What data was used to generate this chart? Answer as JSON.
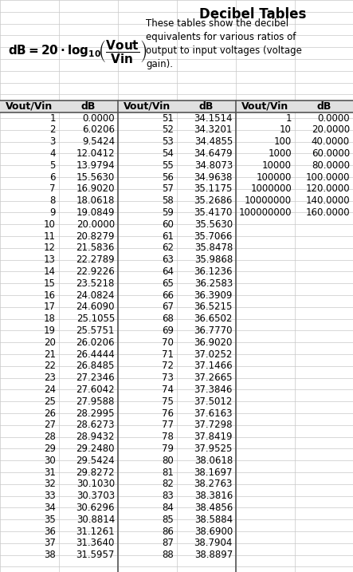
{
  "title": "Decibel Tables",
  "description": "These tables show the decibel\nequivalents for various ratios of\noutput to input voltages (voltage\ngain).",
  "col1_vout": [
    1,
    2,
    3,
    4,
    5,
    6,
    7,
    8,
    9,
    10,
    11,
    12,
    13,
    14,
    15,
    16,
    17,
    18,
    19,
    20,
    21,
    22,
    23,
    24,
    25,
    26,
    27,
    28,
    29,
    30,
    31,
    32,
    33,
    34,
    35,
    36,
    37,
    38
  ],
  "col1_db": [
    "0.0000",
    "6.0206",
    "9.5424",
    "12.0412",
    "13.9794",
    "15.5630",
    "16.9020",
    "18.0618",
    "19.0849",
    "20.0000",
    "20.8279",
    "21.5836",
    "22.2789",
    "22.9226",
    "23.5218",
    "24.0824",
    "24.6090",
    "25.1055",
    "25.5751",
    "26.0206",
    "26.4444",
    "26.8485",
    "27.2346",
    "27.6042",
    "27.9588",
    "28.2995",
    "28.6273",
    "28.9432",
    "29.2480",
    "29.5424",
    "29.8272",
    "30.1030",
    "30.3703",
    "30.6296",
    "30.8814",
    "31.1261",
    "31.3640",
    "31.5957"
  ],
  "col2_vout": [
    51,
    52,
    53,
    54,
    55,
    56,
    57,
    58,
    59,
    60,
    61,
    62,
    63,
    64,
    65,
    66,
    67,
    68,
    69,
    70,
    71,
    72,
    73,
    74,
    75,
    76,
    77,
    78,
    79,
    80,
    81,
    82,
    83,
    84,
    85,
    86,
    87,
    88
  ],
  "col2_db": [
    "34.1514",
    "34.3201",
    "34.4855",
    "34.6479",
    "34.8073",
    "34.9638",
    "35.1175",
    "35.2686",
    "35.4170",
    "35.5630",
    "35.7066",
    "35.8478",
    "35.9868",
    "36.1236",
    "36.2583",
    "36.3909",
    "36.5215",
    "36.6502",
    "36.7770",
    "36.9020",
    "37.0252",
    "37.1466",
    "37.2665",
    "37.3846",
    "37.5012",
    "37.6163",
    "37.7298",
    "37.8419",
    "37.9525",
    "38.0618",
    "38.1697",
    "38.2763",
    "38.3816",
    "38.4856",
    "38.5884",
    "38.6900",
    "38.7904",
    "38.8897"
  ],
  "col3_vout": [
    "1",
    "10",
    "100",
    "1000",
    "10000",
    "100000",
    "1000000",
    "10000000",
    "100000000"
  ],
  "col3_db": [
    "0.0000",
    "20.0000",
    "40.0000",
    "60.0000",
    "80.0000",
    "100.0000",
    "120.0000",
    "140.0000",
    "160.0000"
  ],
  "bg_color": "#ffffff",
  "grid_color": "#c8c8c8",
  "sep_color": "#555555",
  "text_color": "#000000",
  "header_bg": "#e0e0e0",
  "font_size": 8.5,
  "header_font_size": 9.0
}
